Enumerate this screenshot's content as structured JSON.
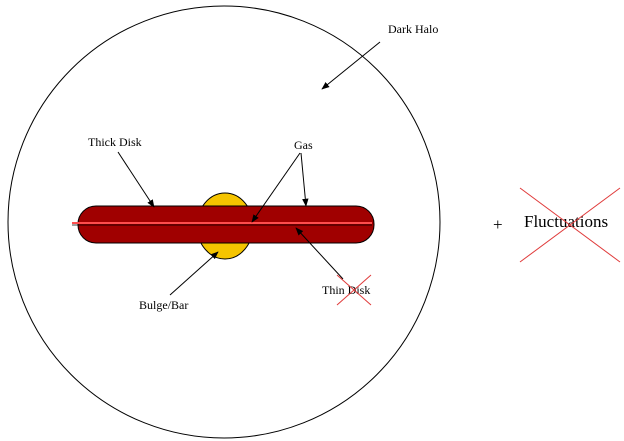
{
  "labels": {
    "dark_halo": "Dark Halo",
    "thick_disk": "Thick Disk",
    "gas": "Gas",
    "bulge_bar": "Bulge/Bar",
    "thin_disk": "Thin Disk",
    "plus": "+",
    "fluctuations": "Fluctuations"
  },
  "colors": {
    "thick_disk_fill": "#a00000",
    "bulge_fill": "#f5c400",
    "gas_line": "#ff4d4d",
    "cross_out": "#e03a3a",
    "outline": "#000000"
  }
}
